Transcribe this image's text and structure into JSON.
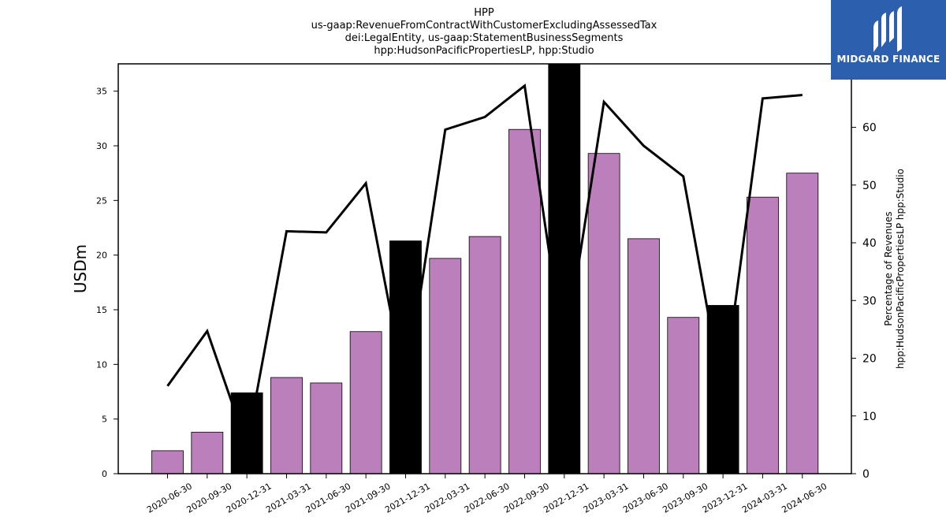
{
  "chart_data": {
    "type": "bar",
    "title_lines": [
      "HPP",
      "us-gaap:RevenueFromContractWithCustomerExcludingAssessedTax",
      "dei:LegalEntity, us-gaap:StatementBusinessSegments",
      "hpp:HudsonPacificPropertiesLP, hpp:Studio"
    ],
    "ylabel": "USDm",
    "y2label_lines": [
      "Percentage of Revenues",
      "hpp:HudsonPacificPropertiesLP hpp:Studio"
    ],
    "ylim": [
      0,
      37.5
    ],
    "y2lim": [
      0,
      71
    ],
    "yticks": [
      0,
      5,
      10,
      15,
      20,
      25,
      30,
      35
    ],
    "y2ticks": [
      0,
      10,
      20,
      30,
      40,
      50,
      60
    ],
    "categories": [
      "2020-06-30",
      "2020-09-30",
      "2020-12-31",
      "2021-03-31",
      "2021-06-30",
      "2021-09-30",
      "2021-12-31",
      "2022-03-31",
      "2022-06-30",
      "2022-09-30",
      "2022-12-31",
      "2023-03-31",
      "2023-06-30",
      "2023-09-30",
      "2023-12-31",
      "2024-03-31",
      "2024-06-30"
    ],
    "values": [
      2.1,
      3.8,
      7.4,
      8.8,
      8.3,
      13.0,
      21.3,
      19.7,
      21.7,
      31.5,
      37.5,
      29.3,
      21.5,
      14.3,
      15.4,
      25.3,
      27.5
    ],
    "highlight": [
      false,
      false,
      true,
      false,
      false,
      false,
      true,
      false,
      false,
      false,
      true,
      false,
      false,
      false,
      true,
      false,
      false
    ],
    "series": [
      {
        "type": "line",
        "axis": "secondary",
        "values": [
          15.2,
          24.7,
          4.8,
          42.0,
          41.8,
          50.3,
          14.5,
          59.6,
          61.8,
          67.2,
          20.5,
          64.4,
          56.8,
          51.5,
          13.6,
          65.0,
          65.6
        ]
      }
    ],
    "colors": {
      "bar": "#bb80bb",
      "highlight_bar": "#000000",
      "line": "#000000",
      "edge": "#000000"
    }
  },
  "logo": {
    "text": "MIDGARD FINANCE",
    "background": "#2c5fae"
  }
}
